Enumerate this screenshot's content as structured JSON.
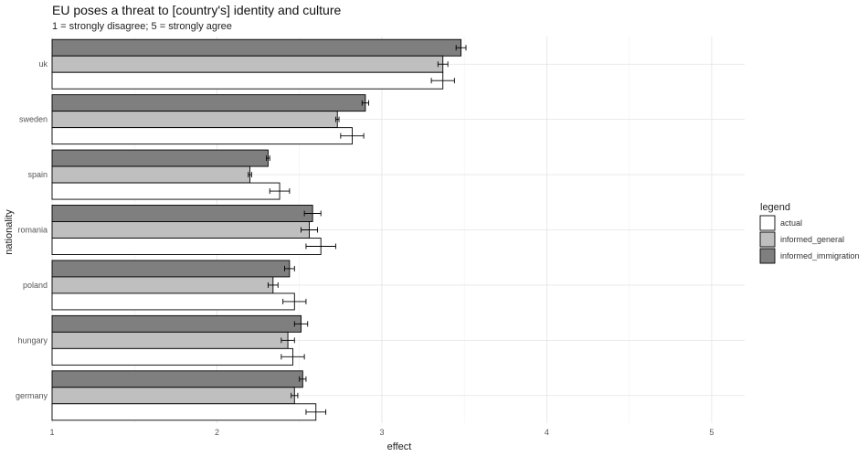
{
  "chart_data": {
    "type": "bar",
    "orientation": "horizontal",
    "title": "EU poses a threat to [country's] identity and culture",
    "subtitle": "1 = strongly disagree; 5 = strongly agree",
    "xlabel": "effect",
    "ylabel": "nationality",
    "xlim": [
      1,
      5.2
    ],
    "xticks": [
      1,
      2,
      3,
      4,
      5
    ],
    "grid": true,
    "legend_title": "legend",
    "legend_position": "right",
    "categories": [
      "uk",
      "sweden",
      "spain",
      "romania",
      "poland",
      "hungary",
      "germany"
    ],
    "series": [
      {
        "name": "informed_immigration",
        "color": "#7f7f7f",
        "values": [
          3.48,
          2.9,
          2.31,
          2.58,
          2.44,
          2.51,
          2.52
        ],
        "errors": [
          0.03,
          0.02,
          0.01,
          0.05,
          0.03,
          0.04,
          0.02
        ]
      },
      {
        "name": "informed_general",
        "color": "#bfbfbf",
        "values": [
          3.37,
          2.73,
          2.2,
          2.56,
          2.34,
          2.43,
          2.47
        ],
        "errors": [
          0.03,
          0.01,
          0.01,
          0.05,
          0.03,
          0.04,
          0.02
        ]
      },
      {
        "name": "actual",
        "color": "#ffffff",
        "values": [
          3.37,
          2.82,
          2.38,
          2.63,
          2.47,
          2.46,
          2.6
        ],
        "errors": [
          0.07,
          0.07,
          0.06,
          0.09,
          0.07,
          0.07,
          0.06
        ]
      }
    ],
    "legend_order": [
      "actual",
      "informed_general",
      "informed_immigration"
    ]
  }
}
